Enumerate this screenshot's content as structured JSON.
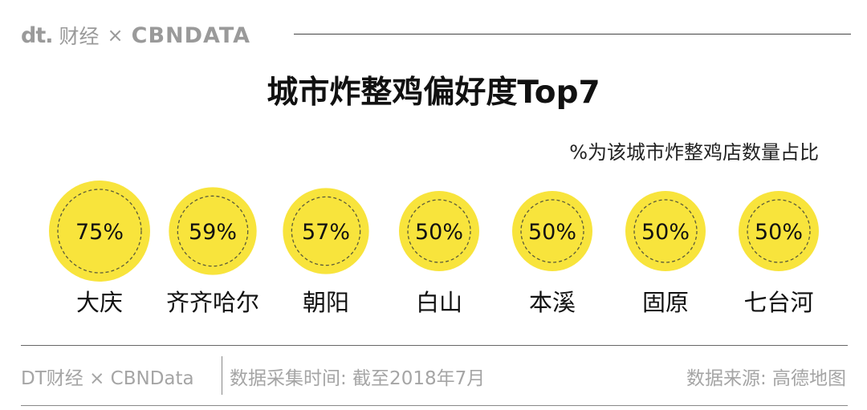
{
  "header": {
    "brand_dt": "dt.",
    "brand_cn": "财经",
    "brand_x": "×",
    "brand_cbn": "CBNDATA"
  },
  "chart_data": {
    "type": "bubble",
    "title": "城市炸整鸡偏好度Top7",
    "subtitle": "%为该城市炸整鸡店数量占比",
    "categories": [
      "大庆",
      "齐齐哈尔",
      "朝阳",
      "白山",
      "本溪",
      "固原",
      "七台河"
    ],
    "values": [
      75,
      59,
      57,
      50,
      50,
      50,
      50
    ],
    "value_labels": [
      "75%",
      "59%",
      "57%",
      "50%",
      "50%",
      "50%",
      "50%"
    ],
    "unit": "%",
    "bubble_color": "#F8E43C",
    "dash_color": "#5a5a3a"
  },
  "footer": {
    "left": "DT财经 × CBNData",
    "middle": "数据采集时间: 截至2018年7月",
    "right": "数据来源: 高德地图"
  }
}
